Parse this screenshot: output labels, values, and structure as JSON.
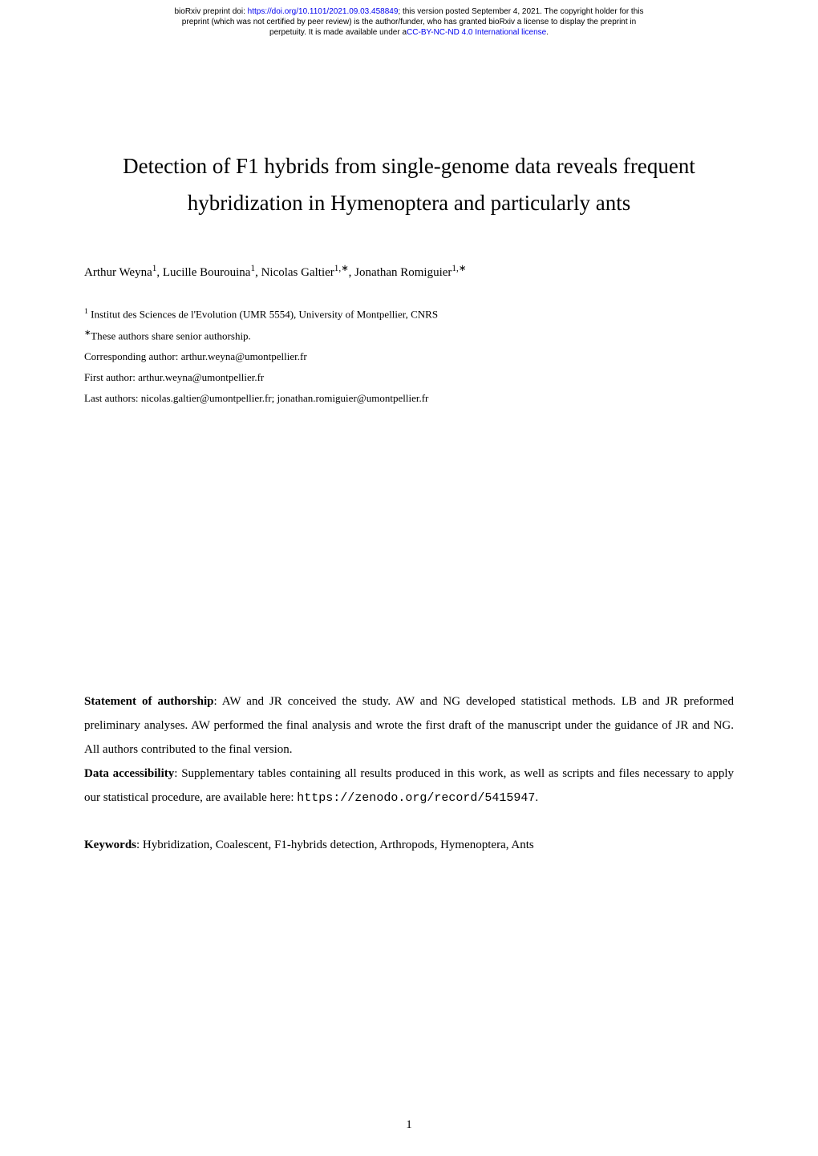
{
  "preprint_header": {
    "line1_prefix": "bioRxiv preprint doi: ",
    "doi_url": "https://doi.org/10.1101/2021.09.03.458849",
    "line1_suffix": "; this version posted September 4, 2021. The copyright holder for this",
    "line2": "preprint (which was not certified by peer review) is the author/funder, who has granted bioRxiv a license to display the preprint in",
    "line3_prefix": "perpetuity. It is made available under a",
    "license_text": "CC-BY-NC-ND 4.0 International license",
    "line3_suffix": "."
  },
  "title": {
    "line1": "Detection of F1 hybrids from single-genome data reveals frequent",
    "line2": "hybridization in Hymenoptera and particularly ants"
  },
  "authors": {
    "a1_name": "Arthur Weyna",
    "a1_sup": "1",
    "a2_name": "Lucille Bourouina",
    "a2_sup": "1",
    "a3_name": "Nicolas Galtier",
    "a3_sup": "1,∗",
    "a4_name": "Jonathan Romiguier",
    "a4_sup": "1,∗"
  },
  "affiliations": {
    "inst_sup": "1",
    "inst_text": " Institut des Sciences de l'Evolution (UMR 5554), University of Montpellier, CNRS",
    "senior_sup": "∗",
    "senior_text": "These authors share senior authorship.",
    "corresponding": "Corresponding author: arthur.weyna@umontpellier.fr",
    "first_author": "First author: arthur.weyna@umontpellier.fr",
    "last_authors": "Last authors: nicolas.galtier@umontpellier.fr; jonathan.romiguier@umontpellier.fr"
  },
  "statement": {
    "label": "Statement of authorship",
    "text": ": AW and JR conceived the study. AW and NG developed statistical methods. LB and JR preformed preliminary analyses. AW performed the final analysis and wrote the first draft of the manuscript under the guidance of JR and NG. All authors contributed to the final version."
  },
  "data_accessibility": {
    "label": "Data accessibility",
    "text": ": Supplementary tables containing all results produced in this work, as well as scripts and files necessary to apply our statistical procedure, are available here: ",
    "url": "https://zenodo.org/record/5415947",
    "suffix": "."
  },
  "keywords": {
    "label": "Keywords",
    "text": ": Hybridization, Coalescent, F1-hybrids detection, Arthropods, Hymenoptera, Ants"
  },
  "page_number": "1",
  "colors": {
    "background": "#ffffff",
    "text": "#000000",
    "link": "#0000ee"
  },
  "typography": {
    "header_fontsize": 10,
    "title_fontsize": 27,
    "body_fontsize": 15,
    "affiliation_fontsize": 13
  }
}
